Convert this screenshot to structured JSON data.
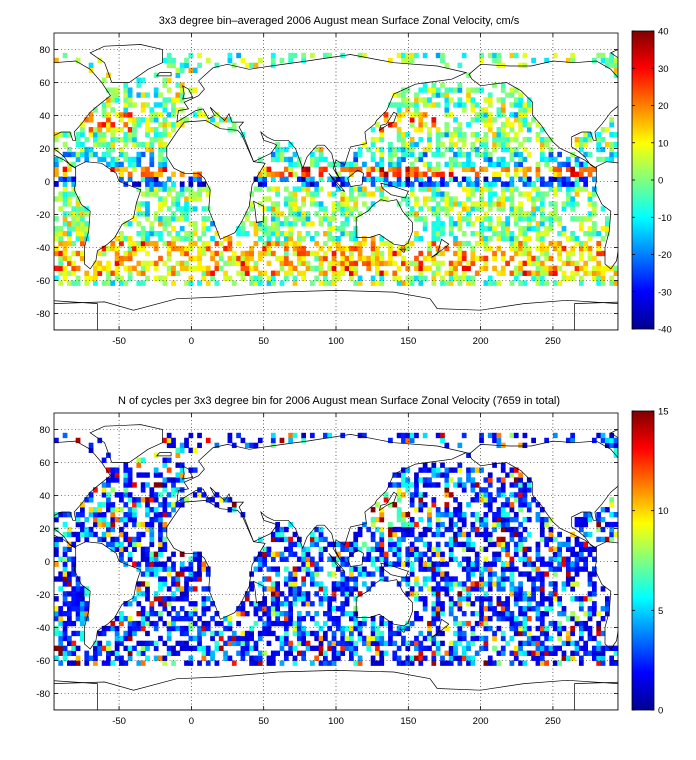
{
  "chart_data": [
    {
      "type": "heatmap",
      "title": "3x3 degree bin–averaged 2006 August mean Surface Zonal Velocity, cm/s",
      "xlabel": "",
      "ylabel": "",
      "xlim": [
        -95,
        295
      ],
      "ylim": [
        -90,
        90
      ],
      "x_ticks": [
        -50,
        0,
        50,
        100,
        150,
        200,
        250
      ],
      "y_ticks": [
        80,
        60,
        40,
        20,
        0,
        -20,
        -40,
        -60,
        -80
      ],
      "grid": true,
      "bin_size_deg": 3,
      "colorbar": {
        "min": -40,
        "max": 40,
        "ticks": [
          40,
          30,
          20,
          10,
          0,
          -10,
          -20,
          -30,
          -40
        ],
        "colormap": "jet"
      },
      "coastlines": true
    },
    {
      "type": "heatmap",
      "title": "N of cycles per 3x3 degree bin for 2006 August mean Surface Zonal Velocity (7659 in total)",
      "xlabel": "",
      "ylabel": "",
      "xlim": [
        -95,
        295
      ],
      "ylim": [
        -90,
        90
      ],
      "x_ticks": [
        -50,
        0,
        50,
        100,
        150,
        200,
        250
      ],
      "y_ticks": [
        80,
        60,
        40,
        20,
        0,
        -20,
        -40,
        -60,
        -80
      ],
      "grid": true,
      "bin_size_deg": 3,
      "total_cycles": 7659,
      "colorbar": {
        "min": 0,
        "max": 15,
        "ticks": [
          15,
          10,
          5,
          0
        ],
        "colormap": "jet"
      },
      "coastlines": true
    }
  ]
}
